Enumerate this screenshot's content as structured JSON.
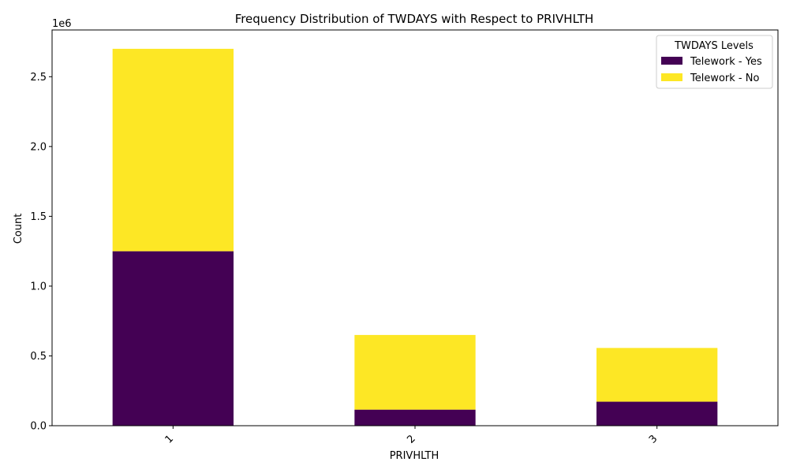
{
  "chart_data": {
    "type": "bar",
    "stacked": true,
    "title": "Frequency Distribution of TWDAYS with Respect to PRIVHLTH",
    "xlabel": "PRIVHLTH",
    "ylabel": "Count",
    "y_scale_label": "1e6",
    "categories": [
      "1",
      "2",
      "3"
    ],
    "series": [
      {
        "name": "Telework - Yes",
        "color": "#440154",
        "values": [
          1250000,
          115000,
          172000
        ]
      },
      {
        "name": "Telework - No",
        "color": "#fde725",
        "values": [
          1450000,
          535000,
          385000
        ]
      }
    ],
    "ylim": [
      0,
      2835000
    ],
    "yticks": [
      0,
      500000,
      1000000,
      1500000,
      2000000,
      2500000
    ],
    "ytick_labels": [
      "0.0",
      "0.5",
      "1.0",
      "1.5",
      "2.0",
      "2.5"
    ],
    "legend": {
      "title": "TWDAYS Levels",
      "position": "top-right"
    },
    "grid": false
  }
}
